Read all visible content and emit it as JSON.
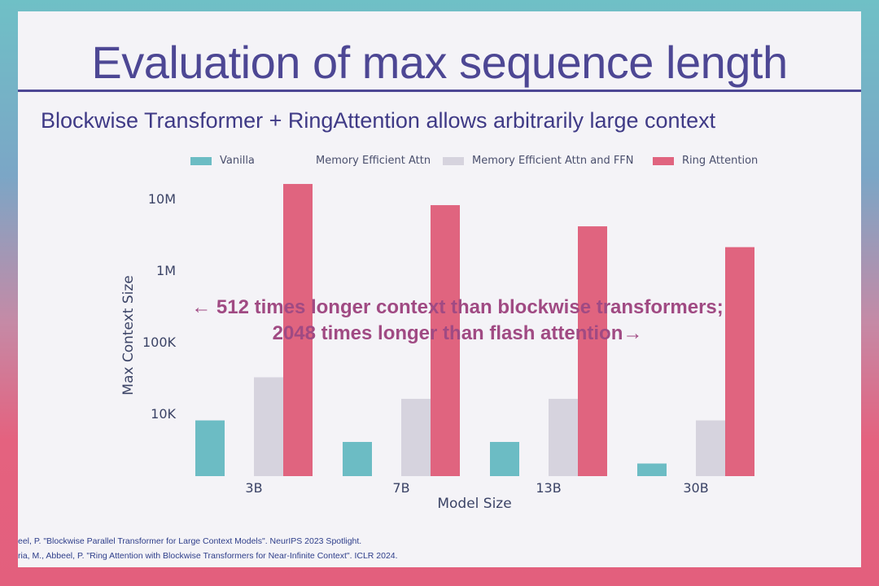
{
  "slide": {
    "title": "Evaluation of max sequence length",
    "subtitle": "Blockwise Transformer + RingAttention allows arbitrarily large context",
    "callout_line1": "← 512 times longer context than blockwise transformers;",
    "callout_line2": "2048 times longer than flash attention→",
    "ref1": "eel, P. \"Blockwise Parallel Transformer for Large Context Models\". NeurIPS 2023 Spotlight.",
    "ref2": "ria, M., Abbeel, P. \"Ring Attention with Blockwise Transformers for Near-Infinite Context\". ICLR 2024."
  },
  "chart_data": {
    "type": "bar",
    "title": "",
    "xlabel": "Model Size",
    "ylabel": "Max Context Size",
    "y_scale": "log",
    "ylim": [
      1000,
      20000000
    ],
    "y_ticks": [
      {
        "value": 10000,
        "label": "10K"
      },
      {
        "value": 100000,
        "label": "100K"
      },
      {
        "value": 1000000,
        "label": "1M"
      },
      {
        "value": 10000000,
        "label": "10M"
      }
    ],
    "categories": [
      "3B",
      "7B",
      "13B",
      "30B"
    ],
    "legend_position": "top",
    "grid": false,
    "series": [
      {
        "name": "Vanilla",
        "color": "#6cbcc4",
        "values": [
          8000,
          4000,
          4000,
          2000
        ]
      },
      {
        "name": "Memory Efficient Attn",
        "color": "#f4f3f7",
        "values": [
          0,
          0,
          0,
          0
        ]
      },
      {
        "name": "Memory Efficient Attn and FFN",
        "color": "#d6d3de",
        "values": [
          32000,
          16000,
          16000,
          8000
        ]
      },
      {
        "name": "Ring Attention",
        "color": "#e0647f",
        "values": [
          16000000,
          8100000,
          4100000,
          2100000
        ]
      }
    ]
  }
}
